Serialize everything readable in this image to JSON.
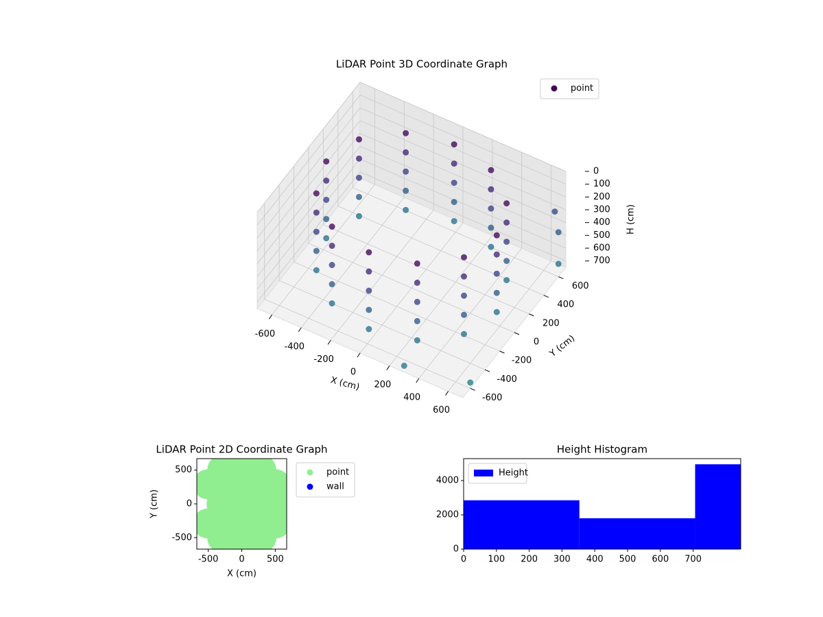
{
  "chart_data": [
    {
      "type": "scatter3d",
      "title": "LiDAR Point 3D Coordinate Graph",
      "xlabel": "X (cm)",
      "ylabel": "Y (cm)",
      "zlabel": "H (cm)",
      "series": [
        {
          "name": "point",
          "color": "#440154",
          "x": [
            580,
            502,
            290,
            0,
            -290,
            -502,
            -580,
            -502,
            -290,
            0,
            290,
            502,
            580,
            502,
            290,
            0,
            -290,
            -502,
            -580,
            -502,
            -290,
            0,
            290,
            502,
            580,
            502,
            290,
            0,
            -290,
            -502,
            -580,
            -502,
            -290,
            0,
            290,
            502,
            580,
            502,
            290,
            0,
            -290,
            -502,
            -580,
            -502,
            -290,
            0,
            290,
            502,
            580,
            502,
            290,
            0,
            -290,
            -502,
            -580,
            -502,
            -290,
            0,
            290,
            502,
            700,
            650,
            600,
            300,
            600
          ],
          "y": [
            0,
            290,
            502,
            580,
            502,
            290,
            0,
            -290,
            -502,
            -580,
            -502,
            -290,
            0,
            290,
            502,
            580,
            502,
            290,
            0,
            -290,
            -502,
            -580,
            -502,
            -290,
            0,
            290,
            502,
            580,
            502,
            290,
            0,
            -290,
            -502,
            -580,
            -502,
            -290,
            0,
            290,
            502,
            580,
            502,
            290,
            0,
            -290,
            -502,
            -580,
            -502,
            -290,
            0,
            290,
            502,
            580,
            502,
            290,
            0,
            -290,
            -502,
            -580,
            -502,
            -290,
            600,
            700,
            750,
            -700,
            -400
          ],
          "z": [
            50,
            50,
            50,
            50,
            50,
            50,
            50,
            50,
            50,
            50,
            50,
            50,
            200,
            200,
            200,
            200,
            200,
            200,
            200,
            200,
            200,
            200,
            200,
            200,
            350,
            350,
            350,
            350,
            350,
            350,
            350,
            350,
            350,
            350,
            350,
            350,
            500,
            500,
            500,
            500,
            500,
            500,
            500,
            500,
            500,
            500,
            500,
            500,
            650,
            650,
            650,
            650,
            650,
            650,
            650,
            650,
            650,
            650,
            650,
            650,
            650,
            500,
            400,
            700,
            900
          ]
        }
      ],
      "colormap": [
        "#440154",
        "#482878",
        "#3e4989",
        "#31688e",
        "#26828e"
      ],
      "xlim": [
        -700,
        700
      ],
      "ylim": [
        -700,
        700
      ],
      "zlim": [
        750,
        0
      ],
      "xticks": [
        -600,
        -400,
        -200,
        0,
        200,
        400,
        600
      ],
      "yticks": [
        -600,
        -400,
        -200,
        0,
        200,
        400,
        600
      ],
      "zticks": [
        0,
        100,
        200,
        300,
        400,
        500,
        600,
        700
      ],
      "grid": true,
      "legend": "upper right"
    },
    {
      "type": "scatter",
      "title": "LiDAR Point 2D Coordinate Graph",
      "xlabel": "X (cm)",
      "ylabel": "Y (cm)",
      "series": [
        {
          "name": "point",
          "color": "#90ee90",
          "x": [
            580,
            502,
            290,
            0,
            -290,
            -502,
            -502,
            -290,
            0,
            290,
            502,
            300,
            150,
            -150,
            -300,
            -150,
            150,
            0
          ],
          "y": [
            0,
            290,
            502,
            580,
            502,
            290,
            -290,
            -502,
            -580,
            -502,
            -290,
            0,
            260,
            260,
            0,
            -260,
            -260,
            0
          ]
        },
        {
          "name": "wall",
          "color": "#0000ff",
          "x": [],
          "y": []
        }
      ],
      "xlim": [
        -670,
        670
      ],
      "ylim": [
        -670,
        670
      ],
      "xticks": [
        -500,
        0,
        500
      ],
      "yticks": [
        -500,
        0,
        500
      ],
      "legend": "outside right"
    },
    {
      "type": "histogram",
      "title": "Height Histogram",
      "bins": [
        0,
        353,
        706,
        1059
      ],
      "series": [
        {
          "name": "Height",
          "color": "#0000ff",
          "values": [
            2850,
            1800,
            4950
          ]
        }
      ],
      "xlim": [
        0,
        845
      ],
      "ylim": [
        0,
        5280
      ],
      "xticks": [
        0,
        100,
        200,
        300,
        400,
        500,
        600,
        700
      ],
      "yticks": [
        0,
        2000,
        4000
      ],
      "legend": "upper left"
    }
  ]
}
